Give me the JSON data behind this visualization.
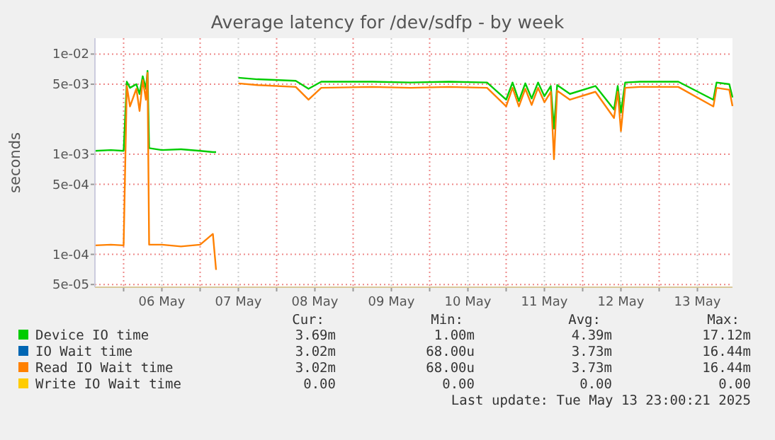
{
  "chart_data": {
    "type": "line",
    "title": "Average latency for /dev/sdfp - by week",
    "ylabel": "seconds",
    "log": "y",
    "grid": true,
    "legend": "bottom",
    "line_style": "solid",
    "x": [
      "2025-05-05T15:00",
      "2025-05-05T20:00",
      "2025-05-06T00:00",
      "2025-05-06T01:00",
      "2025-05-06T02:00",
      "2025-05-06T04:00",
      "2025-05-06T05:00",
      "2025-05-06T06:00",
      "2025-05-06T07:00",
      "2025-05-06T07:30",
      "2025-05-06T08:00",
      "2025-05-06T12:00",
      "2025-05-06T18:00",
      "2025-05-07T00:00",
      "2025-05-07T04:00",
      "2025-05-07T05:00",
      "2025-05-07T08:00",
      "2025-05-07T12:00",
      "2025-05-07T18:00",
      "2025-05-08T06:00",
      "2025-05-08T10:00",
      "2025-05-08T14:00",
      "2025-05-09T06:00",
      "2025-05-09T18:00",
      "2025-05-10T06:00",
      "2025-05-10T18:00",
      "2025-05-11T00:00",
      "2025-05-11T02:00",
      "2025-05-11T04:00",
      "2025-05-11T06:00",
      "2025-05-11T08:00",
      "2025-05-11T10:00",
      "2025-05-11T12:00",
      "2025-05-11T14:00",
      "2025-05-11T15:00",
      "2025-05-11T16:00",
      "2025-05-11T20:00",
      "2025-05-12T04:00",
      "2025-05-12T09:50",
      "2025-05-12T11:00",
      "2025-05-12T12:00",
      "2025-05-12T13:20",
      "2025-05-12T18:00",
      "2025-05-13T06:00",
      "2025-05-13T17:00",
      "2025-05-13T18:00",
      "2025-05-13T22:00",
      "2025-05-13T23:00"
    ],
    "series": [
      {
        "name": "Device IO time",
        "color": "#00cc00",
        "values": [
          0.00108,
          0.0011,
          0.00108,
          0.0053,
          0.0046,
          0.005,
          0.004,
          0.006,
          0.0045,
          0.0068,
          0.00115,
          0.0011,
          0.00112,
          0.00108,
          0.00105,
          0.00105,
          null,
          0.0058,
          0.0056,
          0.0054,
          0.0045,
          0.0053,
          0.0053,
          0.0052,
          0.0053,
          0.0052,
          0.0035,
          0.0052,
          0.0034,
          0.0051,
          0.0036,
          0.0052,
          0.0038,
          0.0048,
          0.0018,
          0.0049,
          0.004,
          0.0048,
          0.0028,
          0.0048,
          0.0026,
          0.0052,
          0.0053,
          0.0053,
          0.0035,
          0.0052,
          0.005,
          0.00369
        ]
      },
      {
        "name": "IO Wait time",
        "color": "#0066b3",
        "values": [
          null,
          null,
          null,
          null,
          null,
          null,
          null,
          null,
          null,
          null,
          null,
          null,
          null,
          null,
          null,
          null,
          null,
          null,
          null,
          null,
          null,
          null,
          null,
          null,
          null,
          null,
          null,
          null,
          null,
          null,
          null,
          null,
          null,
          null,
          null,
          null,
          null,
          null,
          null,
          null,
          null,
          null,
          null,
          null,
          null,
          null,
          null,
          null
        ]
      },
      {
        "name": "Read IO Wait time",
        "color": "#ff8000",
        "values": [
          0.000123,
          0.000125,
          0.000123,
          0.0048,
          0.003,
          0.0045,
          0.0027,
          0.0055,
          0.0035,
          0.0065,
          0.000125,
          0.000125,
          0.00012,
          0.000125,
          0.00016,
          7e-05,
          null,
          0.0051,
          0.0049,
          0.0047,
          0.0035,
          0.0046,
          0.0047,
          0.0046,
          0.0047,
          0.0046,
          0.003,
          0.0046,
          0.003,
          0.0045,
          0.0031,
          0.0046,
          0.0033,
          0.0042,
          0.00089,
          0.0043,
          0.0035,
          0.0042,
          0.0023,
          0.0042,
          0.0017,
          0.0046,
          0.0047,
          0.0047,
          0.003,
          0.0046,
          0.0044,
          0.00302
        ]
      },
      {
        "name": "Write IO Wait time",
        "color": "#ffcc00",
        "values": [
          null,
          null,
          null,
          null,
          null,
          null,
          null,
          null,
          null,
          null,
          null,
          null,
          null,
          null,
          null,
          null,
          null,
          null,
          null,
          null,
          null,
          null,
          null,
          null,
          null,
          null,
          null,
          null,
          null,
          null,
          null,
          null,
          null,
          null,
          null,
          null,
          null,
          null,
          null,
          null,
          null,
          null,
          null,
          null,
          null,
          null,
          null,
          null
        ]
      }
    ],
    "xlim": [
      "2025-05-05T15:00",
      "2025-05-13T23:00"
    ],
    "xticks": [
      {
        "value": "2025-05-06T00:00",
        "label": null
      },
      {
        "value": "2025-05-06T12:00",
        "label": "06 May"
      },
      {
        "value": "2025-05-07T00:00",
        "label": null
      },
      {
        "value": "2025-05-07T12:00",
        "label": "07 May"
      },
      {
        "value": "2025-05-08T00:00",
        "label": null
      },
      {
        "value": "2025-05-08T12:00",
        "label": "08 May"
      },
      {
        "value": "2025-05-09T00:00",
        "label": null
      },
      {
        "value": "2025-05-09T12:00",
        "label": "09 May"
      },
      {
        "value": "2025-05-10T00:00",
        "label": null
      },
      {
        "value": "2025-05-10T12:00",
        "label": "10 May"
      },
      {
        "value": "2025-05-11T00:00",
        "label": null
      },
      {
        "value": "2025-05-11T12:00",
        "label": "11 May"
      },
      {
        "value": "2025-05-12T00:00",
        "label": null
      },
      {
        "value": "2025-05-12T12:00",
        "label": "12 May"
      },
      {
        "value": "2025-05-13T00:00",
        "label": null
      },
      {
        "value": "2025-05-13T12:00",
        "label": "13 May"
      }
    ],
    "ylim": [
      4.7e-05,
      0.0144
    ],
    "yticks": [
      {
        "value": 5e-05,
        "label": "5e-05"
      },
      {
        "value": 0.0001,
        "label": "1e-04"
      },
      {
        "value": 0.0005,
        "label": "5e-04"
      },
      {
        "value": 0.001,
        "label": "1e-03"
      },
      {
        "value": 0.005,
        "label": "5e-03"
      },
      {
        "value": 0.01,
        "label": "1e-02"
      }
    ],
    "annotations": [
      "Cur:",
      "Min:",
      "Avg:",
      "Max:",
      "3.69m",
      "1.00m",
      "4.39m",
      "17.12m",
      "3.02m",
      "68.00u",
      "3.73m",
      "16.44m",
      "3.02m",
      "68.00u",
      "3.73m",
      "16.44m",
      "0.00",
      "0.00",
      "0.00",
      "0.00",
      "Last update: Tue May 13 23:00:21 2025"
    ]
  }
}
